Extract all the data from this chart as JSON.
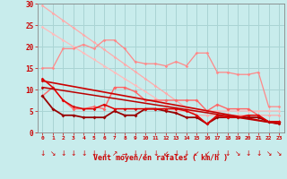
{
  "background_color": "#c8ecec",
  "grid_color": "#aad4d4",
  "xlabel": "Vent moyen/en rafales ( km/h )",
  "xlabel_color": "#cc0000",
  "tick_color": "#cc0000",
  "axis_color": "#888888",
  "xlim": [
    -0.5,
    23.5
  ],
  "ylim": [
    0,
    30
  ],
  "xticks": [
    0,
    1,
    2,
    3,
    4,
    5,
    6,
    7,
    8,
    9,
    10,
    11,
    12,
    13,
    14,
    15,
    16,
    17,
    18,
    19,
    20,
    21,
    22,
    23
  ],
  "yticks": [
    0,
    5,
    10,
    15,
    20,
    25,
    30
  ],
  "lines": [
    {
      "x": [
        0,
        1,
        2,
        3,
        4,
        5,
        6,
        7,
        8,
        9,
        10,
        11,
        12,
        13,
        14,
        15,
        16,
        17,
        18,
        19,
        20,
        21,
        22,
        23
      ],
      "y": [
        29.5,
        27.8,
        26.1,
        24.4,
        22.7,
        21.0,
        19.3,
        17.6,
        15.9,
        14.2,
        12.5,
        10.8,
        9.1,
        7.4,
        5.7,
        4.0,
        4.0,
        4.0,
        4.0,
        4.0,
        4.0,
        4.0,
        4.0,
        4.0
      ],
      "color": "#ffaaaa",
      "lw": 0.9,
      "marker": "D",
      "ms": 1.8
    },
    {
      "x": [
        0,
        1,
        2,
        3,
        4,
        5,
        6,
        7,
        8,
        9,
        10,
        11,
        12,
        13,
        14,
        15,
        16,
        17,
        18,
        19,
        20,
        21,
        22,
        23
      ],
      "y": [
        24.5,
        23.0,
        21.5,
        20.0,
        18.5,
        17.0,
        15.5,
        14.0,
        12.5,
        11.0,
        9.5,
        8.0,
        6.5,
        5.0,
        5.0,
        5.0,
        5.0,
        5.0,
        5.0,
        5.0,
        5.0,
        5.0,
        5.0,
        5.0
      ],
      "color": "#ffbbbb",
      "lw": 0.9,
      "marker": "D",
      "ms": 1.8
    },
    {
      "x": [
        0,
        1,
        2,
        3,
        4,
        5,
        6,
        7,
        8,
        9,
        10,
        11,
        12,
        13,
        14,
        15,
        16,
        17,
        18,
        19,
        20,
        21,
        22,
        23
      ],
      "y": [
        15.0,
        15.0,
        19.5,
        19.5,
        20.5,
        19.5,
        21.5,
        21.5,
        19.5,
        16.5,
        16.0,
        16.0,
        15.5,
        16.5,
        15.5,
        18.5,
        18.5,
        14.0,
        14.0,
        13.5,
        13.5,
        14.0,
        6.0,
        6.0
      ],
      "color": "#ff8888",
      "lw": 0.9,
      "marker": "D",
      "ms": 1.8
    },
    {
      "x": [
        0,
        1,
        2,
        3,
        4,
        5,
        6,
        7,
        8,
        9,
        10,
        11,
        12,
        13,
        14,
        15,
        16,
        17,
        18,
        19,
        20,
        21,
        22,
        23
      ],
      "y": [
        8.5,
        10.5,
        7.5,
        5.5,
        5.5,
        6.0,
        5.5,
        10.5,
        10.5,
        9.5,
        7.5,
        7.5,
        7.5,
        7.5,
        7.5,
        7.5,
        5.0,
        6.5,
        5.5,
        5.5,
        5.5,
        4.0,
        2.5,
        2.5
      ],
      "color": "#ff6666",
      "lw": 1.0,
      "marker": "D",
      "ms": 2.0
    },
    {
      "x": [
        0,
        23
      ],
      "y": [
        12.0,
        2.0
      ],
      "color": "#cc0000",
      "lw": 1.2,
      "marker": "D",
      "ms": 1.8
    },
    {
      "x": [
        0,
        1,
        2,
        3,
        4,
        5,
        6,
        7,
        8,
        9,
        10,
        11,
        12,
        13,
        14,
        15,
        16,
        17,
        18,
        19,
        20,
        21,
        22,
        23
      ],
      "y": [
        8.5,
        5.5,
        4.0,
        4.0,
        3.5,
        3.5,
        3.5,
        5.0,
        4.0,
        4.0,
        5.5,
        5.5,
        5.0,
        4.5,
        3.5,
        3.5,
        2.0,
        3.5,
        3.5,
        3.5,
        3.5,
        3.5,
        2.5,
        2.5
      ],
      "color": "#990000",
      "lw": 1.3,
      "marker": "D",
      "ms": 2.0
    },
    {
      "x": [
        0,
        1,
        2,
        3,
        4,
        5,
        6,
        7,
        8,
        9,
        10,
        11,
        12,
        13,
        14,
        15,
        16,
        17,
        18,
        19,
        20,
        21,
        22,
        23
      ],
      "y": [
        12.5,
        10.5,
        7.5,
        6.0,
        5.5,
        5.5,
        6.5,
        5.5,
        5.5,
        5.5,
        5.5,
        5.5,
        5.5,
        5.5,
        5.0,
        4.0,
        2.0,
        4.0,
        3.5,
        3.5,
        4.0,
        4.0,
        2.5,
        2.5
      ],
      "color": "#dd0000",
      "lw": 1.1,
      "marker": "D",
      "ms": 1.8
    },
    {
      "x": [
        0,
        23
      ],
      "y": [
        10.5,
        2.0
      ],
      "color": "#bb0000",
      "lw": 1.1,
      "marker": "D",
      "ms": 1.8
    }
  ],
  "wind_arrows": [
    "↓",
    "↘",
    "↓",
    "↓",
    "↓",
    "↓",
    "↓",
    "↗",
    "→",
    "↓",
    "↓",
    "↓",
    "↙",
    "↓",
    "↓",
    "↙",
    "↙",
    "↓",
    "↓",
    "↘",
    "↓",
    "↓",
    "↘",
    "↘"
  ]
}
